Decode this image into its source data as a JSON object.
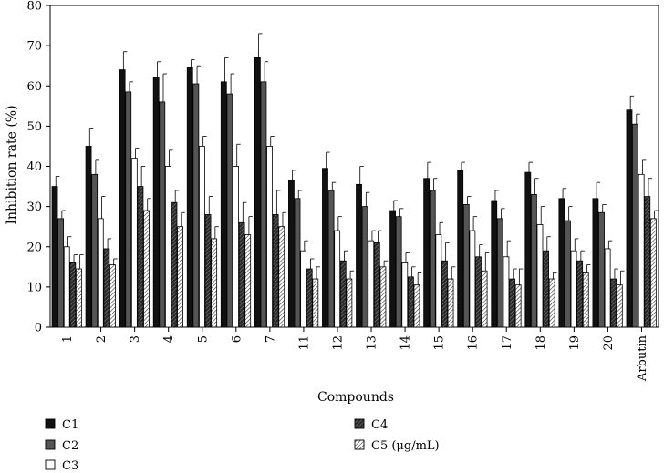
{
  "chart_data": {
    "type": "bar",
    "xlabel": "Compounds",
    "ylabel": "Inhibition rate (%)",
    "ylim": [
      0,
      80
    ],
    "yticks": [
      0,
      10,
      20,
      30,
      40,
      50,
      60,
      70,
      80
    ],
    "grid": false,
    "legend_position": "bottom",
    "categories": [
      "1",
      "2",
      "3",
      "4",
      "5",
      "6",
      "7",
      "11",
      "12",
      "13",
      "14",
      "15",
      "16",
      "17",
      "18",
      "19",
      "20",
      "Arbutin"
    ],
    "series": [
      {
        "name": "C1",
        "pattern": "solid-black",
        "values": [
          35,
          45,
          64,
          62,
          64.5,
          61,
          67,
          36.5,
          39.5,
          35.5,
          29,
          37,
          39,
          31.5,
          38.5,
          32,
          32,
          54
        ],
        "errors": [
          2.5,
          4.5,
          4.5,
          4,
          2,
          6,
          6,
          2.5,
          4,
          4.5,
          2.5,
          4,
          2,
          2.5,
          2.5,
          2.5,
          4,
          3.5
        ]
      },
      {
        "name": "C2",
        "pattern": "solid-gray",
        "values": [
          27,
          38,
          58.5,
          56,
          60.5,
          58,
          61,
          32,
          34,
          30,
          27.5,
          34,
          30.5,
          27,
          33,
          26.5,
          28.5,
          50.5
        ],
        "errors": [
          2,
          3.5,
          2.5,
          7,
          4.5,
          5,
          5,
          2,
          2,
          3.5,
          2,
          3,
          2,
          2.5,
          4,
          3.5,
          2,
          2.5
        ]
      },
      {
        "name": "C3",
        "pattern": "open",
        "values": [
          20,
          27,
          42,
          40,
          45,
          40,
          45,
          19,
          24,
          21.5,
          16,
          23,
          24,
          17.5,
          25.5,
          19,
          19.5,
          38
        ],
        "errors": [
          2.5,
          5.5,
          2.5,
          4,
          2.5,
          5.5,
          2.5,
          2.5,
          3.5,
          2.5,
          2.5,
          3,
          3.5,
          4,
          4.5,
          3,
          2,
          3.5
        ]
      },
      {
        "name": "C4",
        "pattern": "dark-hatch",
        "values": [
          16,
          19.5,
          35,
          31,
          28,
          26,
          28,
          14.5,
          16.5,
          21,
          12.5,
          16.5,
          17.5,
          12,
          19,
          16.5,
          12,
          32.5
        ],
        "errors": [
          2,
          2.5,
          5,
          3,
          4.5,
          5,
          6,
          2.5,
          2.5,
          3,
          2.5,
          4.5,
          3,
          2.5,
          3.5,
          2.5,
          2.5,
          4.5
        ]
      },
      {
        "name": "C5 (μg/mL)",
        "pattern": "light-hatch",
        "values": [
          14.5,
          15.5,
          29,
          25,
          22,
          23,
          25,
          12,
          12,
          15,
          10.5,
          12,
          14,
          10.5,
          12,
          13.5,
          10.5,
          27
        ],
        "errors": [
          3.5,
          1.5,
          3,
          3.5,
          3,
          4.5,
          3.5,
          3,
          2,
          1.5,
          3,
          3,
          4.5,
          4,
          1.5,
          2,
          3.5,
          2
        ]
      }
    ]
  }
}
